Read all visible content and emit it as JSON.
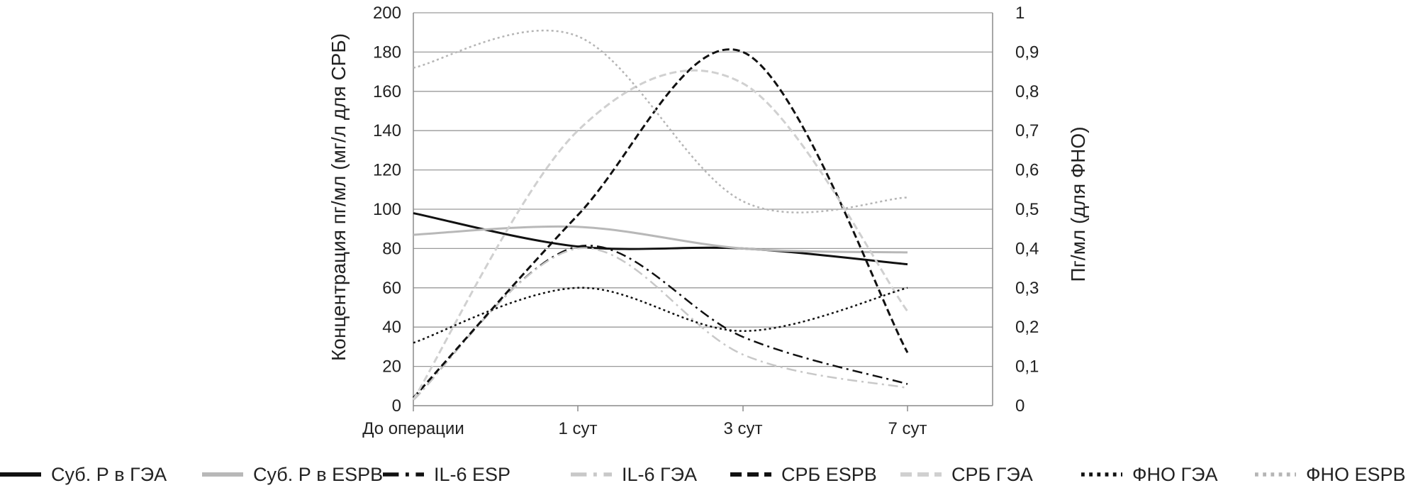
{
  "chart_data": {
    "type": "line",
    "categories": [
      "До операции",
      "1 сут",
      "3 сут",
      "7 сут"
    ],
    "ylabel": "Концентрация пг/мл (мг/л для СРБ)",
    "y2label": "Пг/мл (для ФНО)",
    "ylim": [
      0,
      200
    ],
    "y2lim": [
      0,
      1
    ],
    "yticks": [
      "0",
      "20",
      "40",
      "60",
      "80",
      "100",
      "120",
      "140",
      "160",
      "180",
      "200"
    ],
    "y2ticks": [
      "0",
      "0,1",
      "0,2",
      "0,3",
      "0,4",
      "0,5",
      "0,6",
      "0,7",
      "0,8",
      "0,9",
      "1"
    ],
    "grid": true,
    "legend_position": "bottom",
    "series": [
      {
        "name": "Суб. Р в ГЭА",
        "values": [
          98,
          81,
          80,
          72
        ],
        "axis": "left",
        "color": "#111111",
        "dash": "solid",
        "width": 3
      },
      {
        "name": "Суб. Р в ESPB",
        "values": [
          87,
          91,
          80,
          78
        ],
        "axis": "left",
        "color": "#b8b8b8",
        "dash": "solid",
        "width": 3
      },
      {
        "name": "IL-6 ESP",
        "values": [
          3,
          81,
          35,
          11
        ],
        "axis": "left",
        "color": "#111111",
        "dash": "dashdot",
        "width": 2.5
      },
      {
        "name": "IL-6 ГЭА",
        "values": [
          3,
          80,
          26,
          9
        ],
        "axis": "left",
        "color": "#c8c8c8",
        "dash": "dashdot",
        "width": 2.5
      },
      {
        "name": "СРБ ESPB",
        "values": [
          4,
          97,
          180,
          27
        ],
        "axis": "left",
        "color": "#111111",
        "dash": "dash",
        "width": 3
      },
      {
        "name": "СРБ ГЭА",
        "values": [
          3,
          140,
          164,
          48
        ],
        "axis": "left",
        "color": "#d0d0d0",
        "dash": "dash",
        "width": 3
      },
      {
        "name": "ФНО ГЭА",
        "values": [
          0.16,
          0.3,
          0.19,
          0.3
        ],
        "axis": "right",
        "color": "#111111",
        "dash": "dot",
        "width": 2.5
      },
      {
        "name": "ФНО ESPB",
        "values": [
          0.86,
          0.94,
          0.52,
          0.53
        ],
        "axis": "right",
        "color": "#b5b5b5",
        "dash": "dot",
        "width": 2.5
      }
    ]
  }
}
